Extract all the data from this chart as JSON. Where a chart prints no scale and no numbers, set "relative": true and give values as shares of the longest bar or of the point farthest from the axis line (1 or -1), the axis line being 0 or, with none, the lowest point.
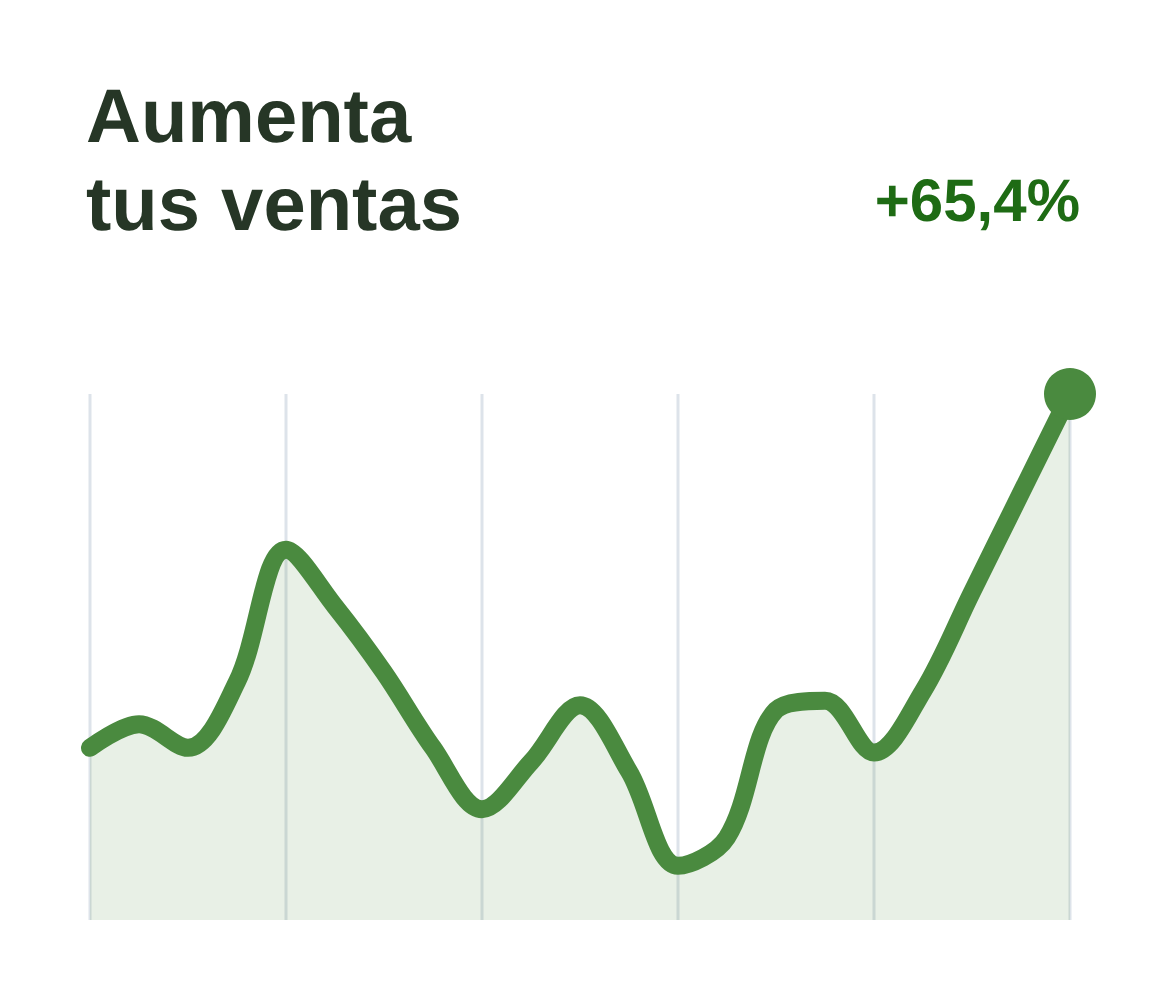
{
  "chart_data": {
    "type": "area",
    "title": "Aumenta tus ventas",
    "annotations": [
      "+65,4%"
    ],
    "relative": true,
    "categories": [
      null,
      null,
      null,
      null,
      null,
      null,
      null,
      null,
      null,
      null,
      null,
      null,
      null,
      null,
      null,
      null,
      null,
      null,
      null,
      null,
      null
    ],
    "grid": "x",
    "line_style": "solid",
    "series": [
      {
        "color": "#4a8a3f",
        "values": [
          0.25,
          0.3,
          0.25,
          0.39,
          0.67,
          0.55,
          0.41,
          0.25,
          0.12,
          0.22,
          0.34,
          0.2,
          0,
          0.06,
          0.33,
          0.35,
          0.24,
          0.37,
          0.58,
          0.79,
          1
        ]
      }
    ]
  }
}
